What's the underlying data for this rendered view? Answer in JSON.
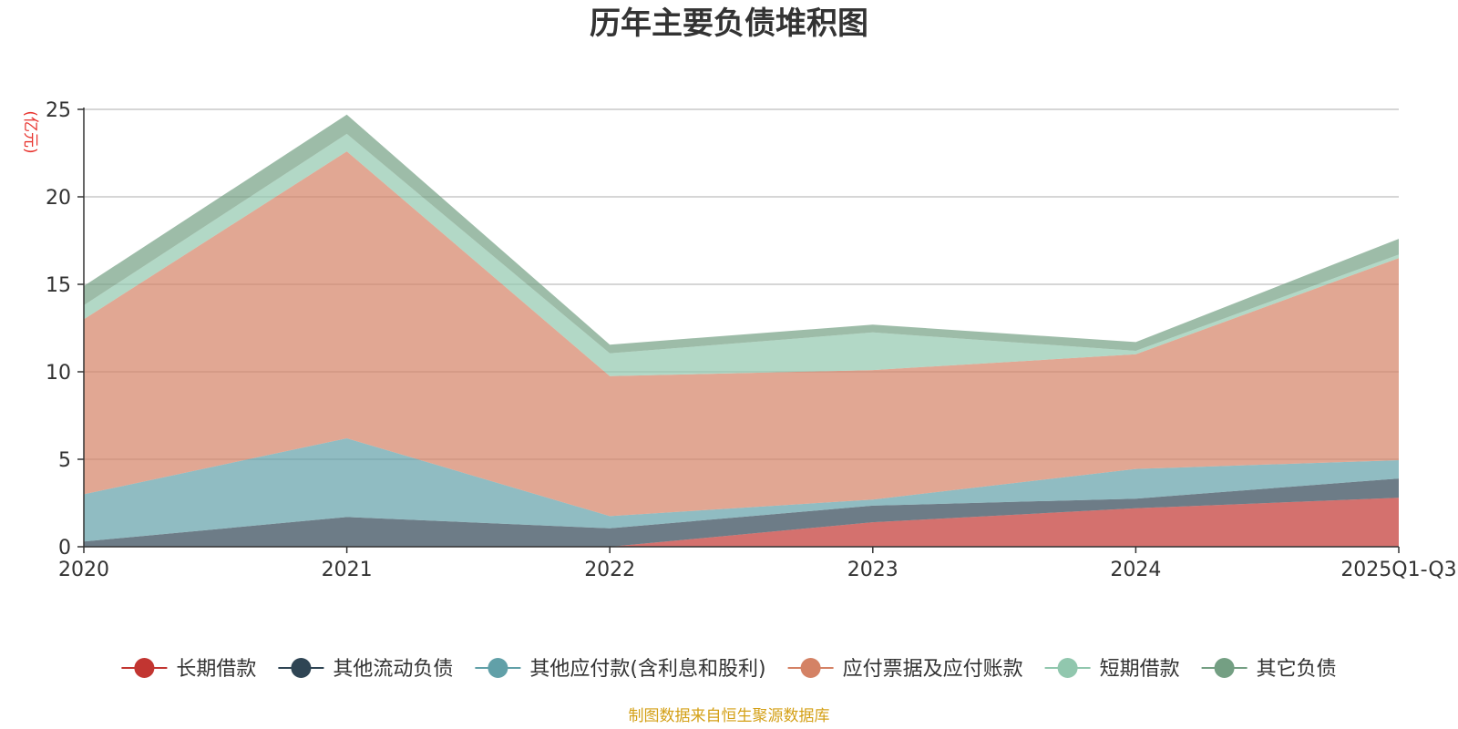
{
  "chart_data": {
    "type": "area",
    "stacked": true,
    "title": "历年主要负债堆积图",
    "unit_label": "(亿元)",
    "source": "制图数据来自恒生聚源数据库",
    "categories": [
      "2020",
      "2021",
      "2022",
      "2023",
      "2024",
      "2025Q1-Q3"
    ],
    "ylim": [
      0,
      25
    ],
    "yticks": [
      0,
      5,
      10,
      15,
      20,
      25
    ],
    "grid": true,
    "legend_position": "bottom",
    "series": [
      {
        "name": "长期借款",
        "color": "#c23531",
        "values": [
          0.0,
          0.0,
          0.0,
          1.4,
          2.2,
          2.8
        ]
      },
      {
        "name": "其他流动负债",
        "color": "#2f4554",
        "values": [
          0.3,
          1.7,
          1.05,
          0.95,
          0.55,
          1.1
        ]
      },
      {
        "name": "其他应付款(含利息和股利)",
        "color": "#61a0a8",
        "values": [
          2.7,
          4.5,
          0.7,
          0.35,
          1.7,
          1.05
        ]
      },
      {
        "name": "应付票据及应付账款",
        "color": "#d48265",
        "values": [
          10.0,
          16.4,
          8.0,
          7.4,
          6.55,
          11.55
        ]
      },
      {
        "name": "短期借款",
        "color": "#91c7ae",
        "values": [
          0.8,
          1.0,
          1.3,
          2.15,
          0.2,
          0.2
        ]
      },
      {
        "name": "其它负债",
        "color": "#749f83",
        "values": [
          1.1,
          1.1,
          0.5,
          0.45,
          0.5,
          0.9
        ]
      }
    ]
  }
}
